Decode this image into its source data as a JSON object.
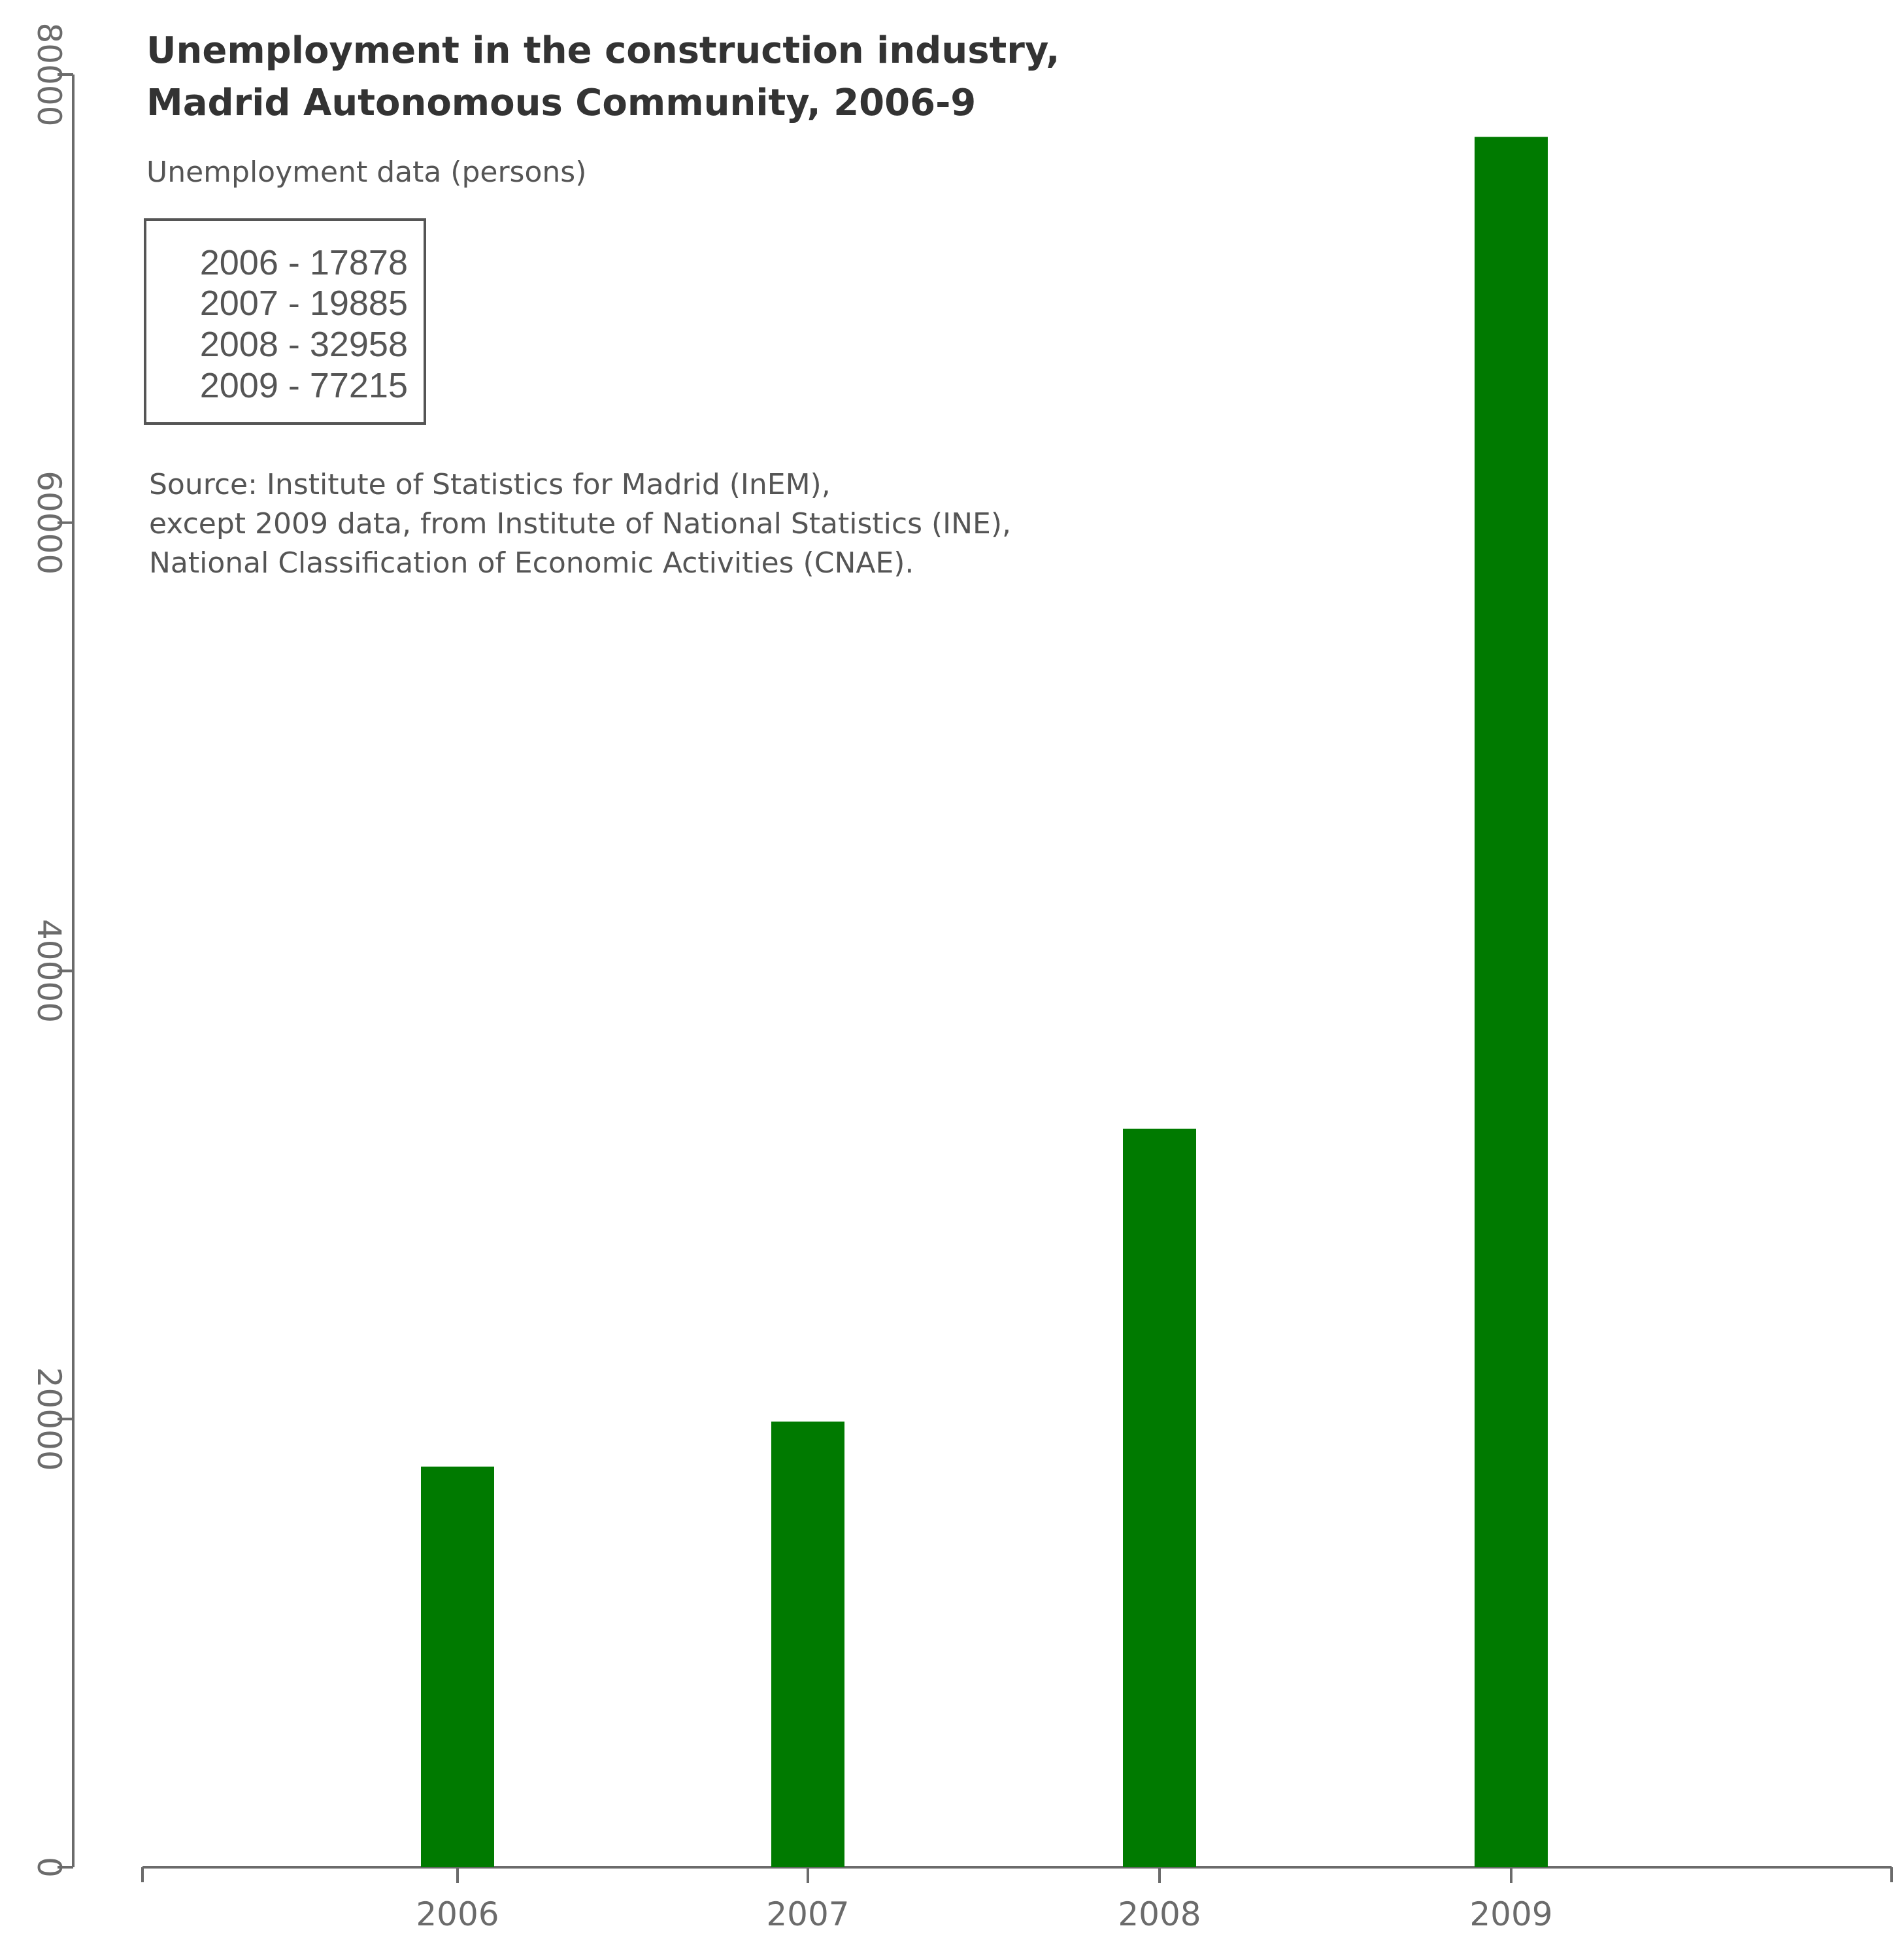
{
  "chart_data": {
    "type": "bar",
    "title_lines": [
      "Unemployment in the construction industry,",
      "Madrid Autonomous Community, 2006-9"
    ],
    "subtitle": "Unemployment data (persons)",
    "categories": [
      "2006",
      "2007",
      "2008",
      "2009"
    ],
    "values": [
      17878,
      19885,
      32958,
      77215
    ],
    "legend_entries": [
      "2006 - 17878",
      "2007 - 19885",
      "2008 - 32958",
      "2009 - 77215"
    ],
    "source_lines": [
      "Source: Institute of Statistics for Madrid (InEM),",
      "except 2009 data, from Institute of National Statistics (INE),",
      "National Classification of Economic Activities (CNAE)."
    ],
    "y_ticks": [
      0,
      20000,
      40000,
      60000,
      80000
    ],
    "ylim": [
      0,
      80000
    ],
    "xlabel": "",
    "ylabel": "",
    "grid": false,
    "legend_position": "top-left",
    "bar_color": "#007a00"
  }
}
